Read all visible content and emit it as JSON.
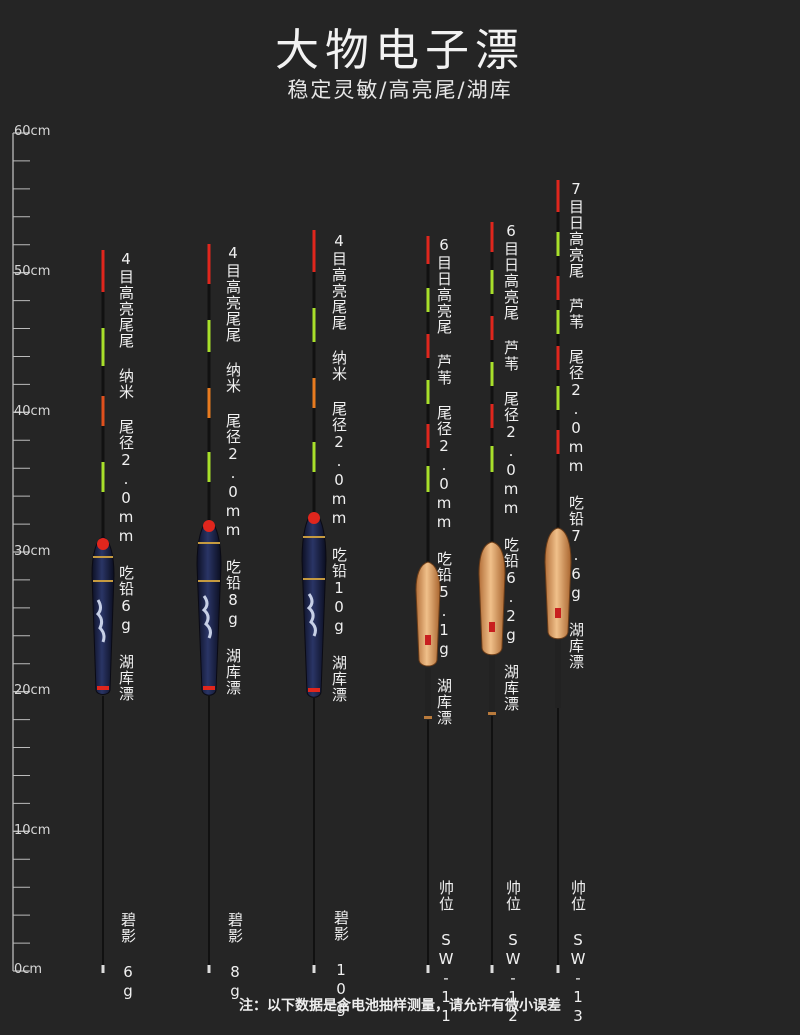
{
  "header": {
    "title": "大物电子漂",
    "subtitle": "稳定灵敏/高亮尾/湖库"
  },
  "ruler": {
    "labels": [
      "60cm",
      "50cm",
      "40cm",
      "30cm",
      "20cm",
      "10cm",
      "0cm"
    ]
  },
  "floats": [
    {
      "spec": "4目高亮尾尾 纳米 尾径2.0mm 吃铅6g 湖库漂",
      "name": "碧影 6g"
    },
    {
      "spec": "4目高亮尾尾 纳米 尾径2.0mm 吃铅8g 湖库漂",
      "name": "碧影 8g"
    },
    {
      "spec": "4目高亮尾尾 纳米 尾径2.0mm 吃铅10g 湖库漂",
      "name": "碧影 10g"
    },
    {
      "spec": "6目日高亮尾 芦苇 尾径2.0mm 吃铅5.1g 湖库漂",
      "name": "帅位 SW-11"
    },
    {
      "spec": "6目日高亮尾 芦苇 尾径2.0mm 吃铅6.2g 湖库漂",
      "name": "帅位 SW-12"
    },
    {
      "spec": "7目日高亮尾 芦苇 尾径2.0mm 吃铅7.6g 湖库漂",
      "name": "帅位 SW-13"
    }
  ],
  "footer": {
    "note": "注：以下数据是含电池抽样测量，请允许有微小误差"
  },
  "colors": {
    "background": "#252525",
    "tip_red": "#e0261d",
    "tip_green": "#a8e02a",
    "tip_orange": "#e87b1f",
    "body_navy": "#1c2346",
    "body_wood": "#d99a5e"
  }
}
